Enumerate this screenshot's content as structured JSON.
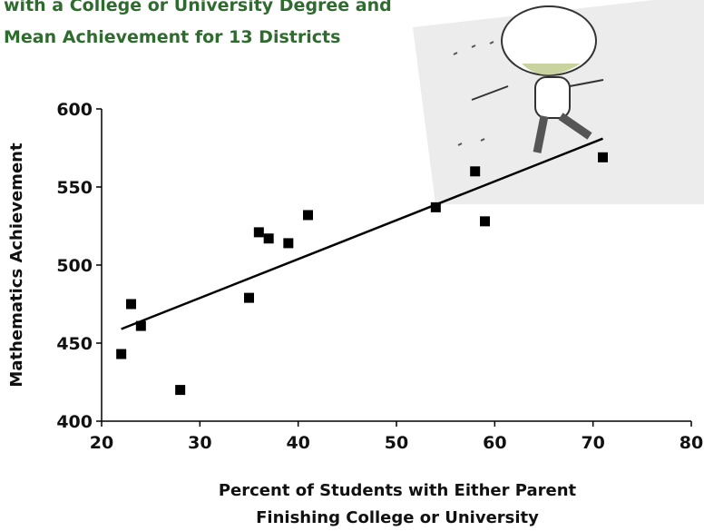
{
  "chart_data": {
    "type": "scatter",
    "title": [
      "with a College or University Degree and",
      "Mean Achievement for 13 Districts"
    ],
    "xlabel": [
      "Percent of Students with Either Parent",
      "Finishing College or University"
    ],
    "ylabel": "Mathematics Achievement",
    "x": [
      22,
      23,
      24,
      28,
      35,
      36,
      37,
      39,
      41,
      54,
      58,
      59,
      71
    ],
    "y": [
      443,
      475,
      461,
      420,
      479,
      521,
      517,
      514,
      532,
      537,
      560,
      528,
      569
    ],
    "color": "#000000",
    "trend_line": {
      "x": [
        22,
        71
      ],
      "y": [
        459,
        581
      ],
      "color": "#000000"
    },
    "xlim": [
      20,
      80
    ],
    "xticks": [
      20,
      30,
      40,
      50,
      60,
      70,
      80
    ],
    "ylim": [
      400,
      600
    ],
    "yticks": [
      400,
      450,
      500,
      550,
      600
    ]
  }
}
